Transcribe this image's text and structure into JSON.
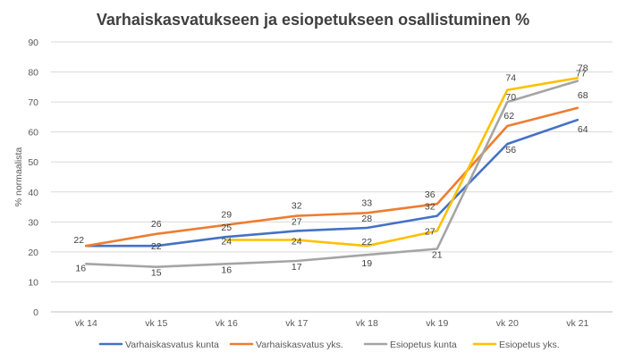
{
  "chart_data": {
    "type": "line",
    "title": "Varhaiskasvatukseen ja esiopetukseen osallistuminen %",
    "ylabel": "% normaalista",
    "xlabel": "",
    "categories": [
      "vk 14",
      "vk 15",
      "vk 16",
      "vk 17",
      "vk 18",
      "vk 19",
      "vk 20",
      "vk 21"
    ],
    "ylim": [
      0,
      90
    ],
    "yticks": [
      0,
      10,
      20,
      30,
      40,
      50,
      60,
      70,
      80,
      90
    ],
    "grid": true,
    "legend_position": "bottom",
    "series": [
      {
        "name": "Varhaiskasvatus kunta",
        "color": "#4472C4",
        "values": [
          22,
          22,
          25,
          27,
          28,
          32,
          56,
          64
        ]
      },
      {
        "name": "Varhaiskasvatus yks.",
        "color": "#ED7D31",
        "values": [
          22,
          26,
          29,
          32,
          33,
          36,
          62,
          68
        ]
      },
      {
        "name": "Esiopetus kunta",
        "color": "#A5A5A5",
        "values": [
          16,
          15,
          16,
          17,
          19,
          21,
          70,
          77
        ]
      },
      {
        "name": "Esiopetus yks.",
        "color": "#FFC000",
        "values": [
          null,
          null,
          24,
          24,
          22,
          27,
          74,
          78
        ]
      }
    ]
  }
}
